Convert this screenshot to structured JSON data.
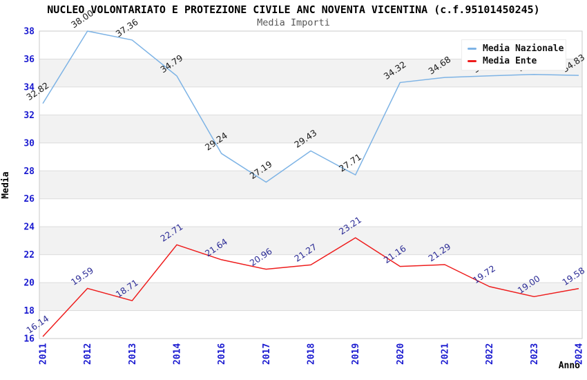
{
  "chart_data": {
    "type": "line",
    "title": "NUCLEO VOLONTARIATO E PROTEZIONE CIVILE ANC NOVENTA VICENTINA (c.f.95101450245)",
    "subtitle": "Media Importi",
    "xlabel": "Anno",
    "ylabel": "Media",
    "categories": [
      "2011",
      "2012",
      "2013",
      "2014",
      "2016",
      "2017",
      "2018",
      "2019",
      "2020",
      "2021",
      "2022",
      "2023",
      "2024"
    ],
    "ylim": [
      16,
      38
    ],
    "ytick_step": 2,
    "grid": "horizontal-bands",
    "legend_position": "top-right",
    "series": [
      {
        "name": "Media Nazionale",
        "color": "#7db3e5",
        "label_color": "#1a1a1a",
        "values": [
          32.82,
          38.0,
          37.36,
          34.79,
          29.24,
          27.19,
          29.43,
          27.71,
          34.32,
          34.68,
          34.8,
          34.9,
          34.83
        ],
        "point_labels": [
          "32.82",
          "38.00",
          "37.36",
          "34.79",
          "29.24",
          "27.19",
          "29.43",
          "27.71",
          "34.32",
          "34.68",
          "34.80",
          "34.90",
          "34.83"
        ]
      },
      {
        "name": "Media Ente",
        "color": "#ee1c1c",
        "label_color": "#2c2c96",
        "values": [
          16.14,
          19.59,
          18.71,
          22.71,
          21.64,
          20.96,
          21.27,
          23.21,
          21.16,
          21.29,
          19.72,
          19.0,
          19.58
        ],
        "point_labels": [
          "16.14",
          "19.59",
          "18.71",
          "22.71",
          "21.64",
          "20.96",
          "21.27",
          "23.21",
          "21.16",
          "21.29",
          "19.72",
          "19.00",
          "19.58"
        ]
      }
    ],
    "style": {
      "band_fill": "#f2f2f2",
      "grid_color": "#dcdcdc",
      "border_color": "#c9c9c9",
      "tick_color": "#1a1ad0",
      "axis_title_color": "#000000",
      "subtitle_color": "#555555"
    }
  }
}
